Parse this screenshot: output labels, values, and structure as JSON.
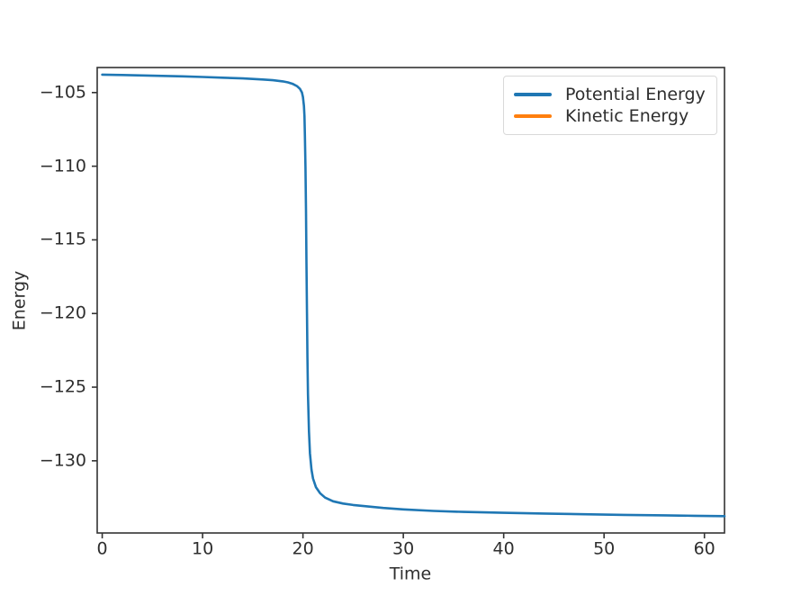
{
  "style": {
    "background": "#ffffff",
    "spine_color": "#333333",
    "tick_color": "#333333",
    "text_color": "#2e2e2e",
    "legend_border": "#d9d9d9"
  },
  "chart_data": {
    "type": "line",
    "title": "",
    "xlabel": "Time",
    "ylabel": "Energy",
    "xlim": [
      -0.5,
      62
    ],
    "ylim": [
      -134.9,
      -103.3
    ],
    "grid": false,
    "legend_position": "upper right",
    "x_ticks": {
      "values": [
        0,
        10,
        20,
        30,
        40,
        50,
        60
      ],
      "labels": [
        "0",
        "10",
        "20",
        "30",
        "40",
        "50",
        "60"
      ]
    },
    "y_ticks": {
      "values": [
        -105,
        -110,
        -115,
        -120,
        -125,
        -130
      ],
      "labels": [
        "−105",
        "−110",
        "−115",
        "−120",
        "−125",
        "−130"
      ]
    },
    "series": [
      {
        "name": "Potential Energy",
        "color": "#1f77b4",
        "points": [
          [
            0,
            -103.78
          ],
          [
            2,
            -103.81
          ],
          [
            4,
            -103.84
          ],
          [
            6,
            -103.87
          ],
          [
            8,
            -103.9
          ],
          [
            10,
            -103.94
          ],
          [
            12,
            -103.99
          ],
          [
            14,
            -104.04
          ],
          [
            16,
            -104.11
          ],
          [
            17,
            -104.16
          ],
          [
            18,
            -104.24
          ],
          [
            18.5,
            -104.31
          ],
          [
            19,
            -104.42
          ],
          [
            19.4,
            -104.56
          ],
          [
            19.7,
            -104.75
          ],
          [
            19.9,
            -105.0
          ],
          [
            20.0,
            -105.3
          ],
          [
            20.1,
            -105.9
          ],
          [
            20.15,
            -106.6
          ],
          [
            20.2,
            -108.0
          ],
          [
            20.25,
            -110.0
          ],
          [
            20.3,
            -113.0
          ],
          [
            20.35,
            -116.5
          ],
          [
            20.4,
            -120.0
          ],
          [
            20.45,
            -123.0
          ],
          [
            20.5,
            -125.5
          ],
          [
            20.6,
            -128.0
          ],
          [
            20.7,
            -129.5
          ],
          [
            20.85,
            -130.6
          ],
          [
            21.0,
            -131.2
          ],
          [
            21.3,
            -131.8
          ],
          [
            21.7,
            -132.2
          ],
          [
            22.2,
            -132.5
          ],
          [
            23,
            -132.75
          ],
          [
            24,
            -132.9
          ],
          [
            25,
            -133.0
          ],
          [
            26.5,
            -133.1
          ],
          [
            28,
            -133.2
          ],
          [
            30,
            -133.3
          ],
          [
            33,
            -133.4
          ],
          [
            36,
            -133.47
          ],
          [
            40,
            -133.53
          ],
          [
            44,
            -133.58
          ],
          [
            48,
            -133.63
          ],
          [
            52,
            -133.67
          ],
          [
            56,
            -133.7
          ],
          [
            59,
            -133.73
          ],
          [
            62,
            -133.76
          ]
        ]
      },
      {
        "name": "Kinetic Energy",
        "color": "#ff7f0e",
        "points": [],
        "note": "listed in legend; line not visible within the shown axis range"
      }
    ]
  }
}
